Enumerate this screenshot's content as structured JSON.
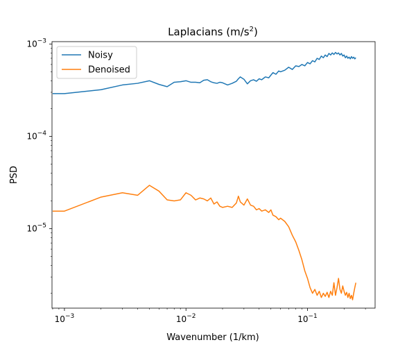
{
  "chart_data": {
    "type": "line",
    "title": "Laplacians (m/s²)",
    "title_parts": {
      "base": "Laplacians (m/s",
      "sup": "2",
      "end": ")"
    },
    "xlabel": "Wavenumber (1/km)",
    "ylabel": "PSD",
    "x_scale": "log",
    "y_scale": "log",
    "xlim": [
      0.00079,
      0.36
    ],
    "ylim": [
      1.38e-06,
      0.00106
    ],
    "grid": false,
    "legend_position": "top-left",
    "x_ticks": [
      {
        "value": 0.001,
        "base": "10",
        "exp": "−3"
      },
      {
        "value": 0.01,
        "base": "10",
        "exp": "−2"
      },
      {
        "value": 0.1,
        "base": "10",
        "exp": "−1"
      }
    ],
    "y_ticks": [
      {
        "value": 1e-05,
        "base": "10",
        "exp": "−5"
      },
      {
        "value": 0.0001,
        "base": "10",
        "exp": "−4"
      },
      {
        "value": 0.001,
        "base": "10",
        "exp": "−3"
      }
    ],
    "series": [
      {
        "name": "Noisy",
        "color": "#1f77b4",
        "points": [
          [
            0.0008,
            0.00029
          ],
          [
            0.001,
            0.00029
          ],
          [
            0.002,
            0.00032
          ],
          [
            0.003,
            0.00036
          ],
          [
            0.004,
            0.000375
          ],
          [
            0.005,
            0.0004
          ],
          [
            0.006,
            0.000365
          ],
          [
            0.007,
            0.000345
          ],
          [
            0.008,
            0.000385
          ],
          [
            0.009,
            0.00039
          ],
          [
            0.01,
            0.0004
          ],
          [
            0.011,
            0.000385
          ],
          [
            0.012,
            0.000385
          ],
          [
            0.013,
            0.00038
          ],
          [
            0.014,
            0.000405
          ],
          [
            0.015,
            0.00041
          ],
          [
            0.016,
            0.00039
          ],
          [
            0.017,
            0.00038
          ],
          [
            0.018,
            0.000375
          ],
          [
            0.019,
            0.000385
          ],
          [
            0.02,
            0.00038
          ],
          [
            0.022,
            0.00036
          ],
          [
            0.024,
            0.000375
          ],
          [
            0.026,
            0.000395
          ],
          [
            0.027,
            0.00042
          ],
          [
            0.028,
            0.00044
          ],
          [
            0.03,
            0.000415
          ],
          [
            0.032,
            0.00037
          ],
          [
            0.034,
            0.0004
          ],
          [
            0.036,
            0.00041
          ],
          [
            0.038,
            0.000395
          ],
          [
            0.04,
            0.00042
          ],
          [
            0.042,
            0.00041
          ],
          [
            0.045,
            0.00044
          ],
          [
            0.048,
            0.00043
          ],
          [
            0.05,
            0.00046
          ],
          [
            0.052,
            0.00049
          ],
          [
            0.055,
            0.00047
          ],
          [
            0.058,
            0.00051
          ],
          [
            0.06,
            0.0005
          ],
          [
            0.065,
            0.00052
          ],
          [
            0.07,
            0.00056
          ],
          [
            0.075,
            0.00053
          ],
          [
            0.08,
            0.00058
          ],
          [
            0.085,
            0.00057
          ],
          [
            0.09,
            0.0006
          ],
          [
            0.095,
            0.00058
          ],
          [
            0.1,
            0.00063
          ],
          [
            0.105,
            0.00061
          ],
          [
            0.11,
            0.00066
          ],
          [
            0.115,
            0.00064
          ],
          [
            0.12,
            0.0007
          ],
          [
            0.125,
            0.00068
          ],
          [
            0.13,
            0.00074
          ],
          [
            0.135,
            0.00071
          ],
          [
            0.14,
            0.00076
          ],
          [
            0.145,
            0.00073
          ],
          [
            0.15,
            0.00079
          ],
          [
            0.155,
            0.00076
          ],
          [
            0.16,
            0.0008
          ],
          [
            0.165,
            0.00077
          ],
          [
            0.17,
            0.00081
          ],
          [
            0.175,
            0.00078
          ],
          [
            0.18,
            0.0008
          ],
          [
            0.185,
            0.00076
          ],
          [
            0.19,
            0.00079
          ],
          [
            0.195,
            0.00074
          ],
          [
            0.2,
            0.00076
          ],
          [
            0.205,
            0.00071
          ],
          [
            0.21,
            0.00074
          ],
          [
            0.215,
            0.0007
          ],
          [
            0.22,
            0.00072
          ],
          [
            0.225,
            0.00069
          ],
          [
            0.23,
            0.00073
          ],
          [
            0.235,
            0.0007
          ],
          [
            0.24,
            0.00072
          ],
          [
            0.245,
            0.00069
          ],
          [
            0.25,
            0.00071
          ]
        ]
      },
      {
        "name": "Denoised",
        "color": "#ff7f0e",
        "points": [
          [
            0.0008,
            1.55e-05
          ],
          [
            0.001,
            1.55e-05
          ],
          [
            0.002,
            2.2e-05
          ],
          [
            0.003,
            2.45e-05
          ],
          [
            0.004,
            2.3e-05
          ],
          [
            0.005,
            2.95e-05
          ],
          [
            0.006,
            2.55e-05
          ],
          [
            0.007,
            2.05e-05
          ],
          [
            0.008,
            2e-05
          ],
          [
            0.009,
            2.05e-05
          ],
          [
            0.01,
            2.45e-05
          ],
          [
            0.011,
            2.3e-05
          ],
          [
            0.012,
            2.05e-05
          ],
          [
            0.013,
            2.15e-05
          ],
          [
            0.014,
            2.1e-05
          ],
          [
            0.015,
            2e-05
          ],
          [
            0.016,
            2.15e-05
          ],
          [
            0.017,
            1.85e-05
          ],
          [
            0.018,
            1.95e-05
          ],
          [
            0.019,
            1.75e-05
          ],
          [
            0.02,
            1.7e-05
          ],
          [
            0.022,
            1.75e-05
          ],
          [
            0.024,
            1.7e-05
          ],
          [
            0.026,
            1.9e-05
          ],
          [
            0.027,
            2.25e-05
          ],
          [
            0.028,
            1.95e-05
          ],
          [
            0.03,
            1.8e-05
          ],
          [
            0.032,
            2.1e-05
          ],
          [
            0.034,
            1.8e-05
          ],
          [
            0.036,
            1.75e-05
          ],
          [
            0.038,
            1.6e-05
          ],
          [
            0.04,
            1.65e-05
          ],
          [
            0.042,
            1.55e-05
          ],
          [
            0.045,
            1.6e-05
          ],
          [
            0.048,
            1.5e-05
          ],
          [
            0.05,
            1.6e-05
          ],
          [
            0.052,
            1.4e-05
          ],
          [
            0.055,
            1.35e-05
          ],
          [
            0.058,
            1.25e-05
          ],
          [
            0.06,
            1.3e-05
          ],
          [
            0.065,
            1.2e-05
          ],
          [
            0.07,
            1.05e-05
          ],
          [
            0.075,
            8.5e-06
          ],
          [
            0.08,
            7.2e-06
          ],
          [
            0.085,
            5.8e-06
          ],
          [
            0.09,
            4.6e-06
          ],
          [
            0.095,
            3.5e-06
          ],
          [
            0.1,
            2.9e-06
          ],
          [
            0.105,
            2.3e-06
          ],
          [
            0.11,
            2e-06
          ],
          [
            0.115,
            2.2e-06
          ],
          [
            0.12,
            1.9e-06
          ],
          [
            0.125,
            2.1e-06
          ],
          [
            0.13,
            1.8e-06
          ],
          [
            0.135,
            2e-06
          ],
          [
            0.14,
            1.85e-06
          ],
          [
            0.145,
            2.05e-06
          ],
          [
            0.15,
            1.8e-06
          ],
          [
            0.155,
            2.1e-06
          ],
          [
            0.16,
            1.9e-06
          ],
          [
            0.165,
            2.6e-06
          ],
          [
            0.17,
            1.9e-06
          ],
          [
            0.175,
            2.3e-06
          ],
          [
            0.18,
            2.9e-06
          ],
          [
            0.185,
            2.2e-06
          ],
          [
            0.19,
            2e-06
          ],
          [
            0.195,
            2.4e-06
          ],
          [
            0.2,
            2.1e-06
          ],
          [
            0.205,
            1.9e-06
          ],
          [
            0.21,
            2.05e-06
          ],
          [
            0.215,
            1.8e-06
          ],
          [
            0.22,
            2e-06
          ],
          [
            0.225,
            1.75e-06
          ],
          [
            0.23,
            1.9e-06
          ],
          [
            0.235,
            1.7e-06
          ],
          [
            0.24,
            2e-06
          ],
          [
            0.245,
            2.3e-06
          ],
          [
            0.25,
            2.6e-06
          ]
        ]
      }
    ]
  }
}
